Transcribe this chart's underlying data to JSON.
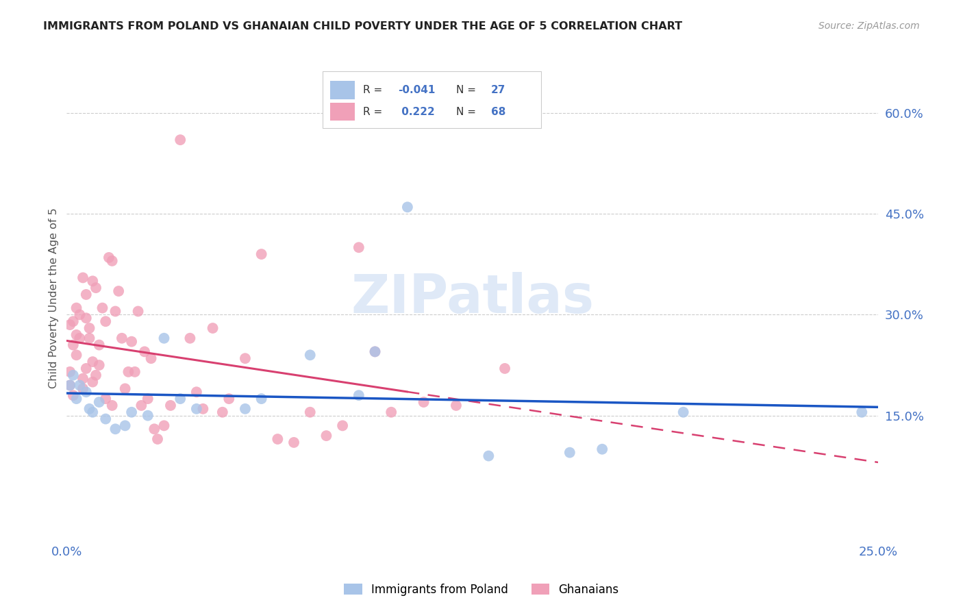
{
  "title": "IMMIGRANTS FROM POLAND VS GHANAIAN CHILD POVERTY UNDER THE AGE OF 5 CORRELATION CHART",
  "source": "Source: ZipAtlas.com",
  "ylabel": "Child Poverty Under the Age of 5",
  "xlim": [
    0.0,
    0.25
  ],
  "ylim": [
    -0.03,
    0.68
  ],
  "yticks": [
    0.15,
    0.3,
    0.45,
    0.6
  ],
  "ytick_labels": [
    "15.0%",
    "30.0%",
    "45.0%",
    "60.0%"
  ],
  "xtick_show": [
    0.0,
    0.25
  ],
  "xtick_labels": [
    "0.0%",
    "25.0%"
  ],
  "legend_label1": "Immigrants from Poland",
  "legend_label2": "Ghanaians",
  "R1": "-0.041",
  "N1": "27",
  "R2": "0.222",
  "N2": "68",
  "color_blue": "#a8c4e8",
  "color_pink": "#f0a0b8",
  "color_blue_line": "#1a56c4",
  "color_pink_line": "#d84070",
  "watermark": "ZIPatlas",
  "poland_x": [
    0.001,
    0.002,
    0.003,
    0.004,
    0.006,
    0.007,
    0.008,
    0.01,
    0.012,
    0.015,
    0.018,
    0.02,
    0.025,
    0.03,
    0.035,
    0.04,
    0.055,
    0.06,
    0.075,
    0.09,
    0.095,
    0.105,
    0.13,
    0.155,
    0.165,
    0.19,
    0.245
  ],
  "poland_y": [
    0.195,
    0.21,
    0.175,
    0.195,
    0.185,
    0.16,
    0.155,
    0.17,
    0.145,
    0.13,
    0.135,
    0.155,
    0.15,
    0.265,
    0.175,
    0.16,
    0.16,
    0.175,
    0.24,
    0.18,
    0.245,
    0.46,
    0.09,
    0.095,
    0.1,
    0.155,
    0.155
  ],
  "ghana_x": [
    0.001,
    0.001,
    0.001,
    0.002,
    0.002,
    0.002,
    0.003,
    0.003,
    0.003,
    0.004,
    0.004,
    0.005,
    0.005,
    0.005,
    0.006,
    0.006,
    0.006,
    0.007,
    0.007,
    0.008,
    0.008,
    0.008,
    0.009,
    0.009,
    0.01,
    0.01,
    0.011,
    0.012,
    0.012,
    0.013,
    0.014,
    0.014,
    0.015,
    0.016,
    0.017,
    0.018,
    0.019,
    0.02,
    0.021,
    0.022,
    0.023,
    0.024,
    0.025,
    0.026,
    0.027,
    0.028,
    0.03,
    0.032,
    0.035,
    0.038,
    0.04,
    0.042,
    0.045,
    0.048,
    0.05,
    0.055,
    0.06,
    0.065,
    0.07,
    0.075,
    0.08,
    0.085,
    0.09,
    0.095,
    0.1,
    0.11,
    0.12,
    0.135
  ],
  "ghana_y": [
    0.215,
    0.195,
    0.285,
    0.255,
    0.29,
    0.18,
    0.31,
    0.27,
    0.24,
    0.3,
    0.265,
    0.355,
    0.205,
    0.19,
    0.33,
    0.295,
    0.22,
    0.28,
    0.265,
    0.35,
    0.23,
    0.2,
    0.34,
    0.21,
    0.255,
    0.225,
    0.31,
    0.29,
    0.175,
    0.385,
    0.38,
    0.165,
    0.305,
    0.335,
    0.265,
    0.19,
    0.215,
    0.26,
    0.215,
    0.305,
    0.165,
    0.245,
    0.175,
    0.235,
    0.13,
    0.115,
    0.135,
    0.165,
    0.56,
    0.265,
    0.185,
    0.16,
    0.28,
    0.155,
    0.175,
    0.235,
    0.39,
    0.115,
    0.11,
    0.155,
    0.12,
    0.135,
    0.4,
    0.245,
    0.155,
    0.17,
    0.165,
    0.22
  ]
}
